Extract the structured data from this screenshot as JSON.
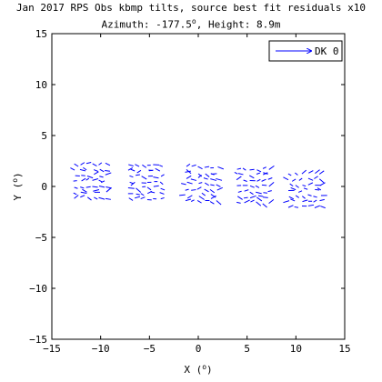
{
  "chart_data": {
    "type": "quiver",
    "title": "Jan 2017 RPS Obs kbmp tilts, source best fit residuals x10",
    "subtitle_prefix": "Azimuth: -177.5",
    "subtitle_degree": "o",
    "subtitle_suffix": ", Height: 8.9m",
    "xlabel_main": "X (",
    "xlabel_degree": "o",
    "xlabel_close": ")",
    "ylabel_main": "Y (",
    "ylabel_degree": "o",
    "ylabel_close": ")",
    "xlim": [
      -15,
      15
    ],
    "ylim": [
      -15,
      15
    ],
    "xticks": [
      -15,
      -10,
      -5,
      0,
      5,
      10,
      15
    ],
    "yticks": [
      -15,
      -10,
      -5,
      0,
      5,
      10,
      15
    ],
    "xtick_labels": [
      "−15",
      "−10",
      "−5",
      "0",
      "5",
      "10",
      "15"
    ],
    "ytick_labels": [
      "−15",
      "−10",
      "−5",
      "0",
      "5",
      "10",
      "15"
    ],
    "grid": false,
    "legend": {
      "position": "top-right",
      "entries": [
        "DK 0"
      ]
    },
    "series_color": "#0000ff",
    "clusters": [
      {
        "x_center": -11.1,
        "y_center": 0.5
      },
      {
        "x_center": -5.5,
        "y_center": 0.4
      },
      {
        "x_center": 0.3,
        "y_center": 0.2
      },
      {
        "x_center": 5.6,
        "y_center": 0.0
      },
      {
        "x_center": 10.9,
        "y_center": -0.4
      }
    ]
  }
}
